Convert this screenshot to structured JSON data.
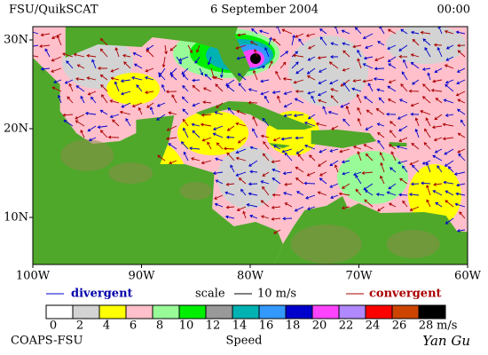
{
  "header": {
    "title": "FSU/QuikSCAT",
    "date": "6 September 2004",
    "time": "00:00"
  },
  "map": {
    "lat_labels": [
      "30N",
      "20N",
      "10N"
    ],
    "lon_labels": [
      "100W",
      "90W",
      "80W",
      "70W",
      "60W"
    ]
  },
  "legend": {
    "divergent": "divergent",
    "scale": "scale",
    "scale_value": "10 m/s",
    "convergent": "convergent"
  },
  "colorbar": {
    "labels": [
      0,
      2,
      4,
      6,
      8,
      10,
      12,
      14,
      16,
      18,
      20,
      22,
      24,
      26,
      28
    ],
    "unit": "m/s",
    "title": "Speed",
    "colors": [
      "#ffffff",
      "#d3d3d3",
      "#ffff00",
      "#ffc0cb",
      "#98fb98",
      "#00ee00",
      "#999999",
      "#00b2b2",
      "#3399ff",
      "#0000cd",
      "#ff44ff",
      "#b088ff",
      "#ff0000",
      "#cc4400",
      "#000000"
    ]
  },
  "footer": {
    "credit": "COAPS-FSU",
    "signature": "Yan Gu"
  }
}
